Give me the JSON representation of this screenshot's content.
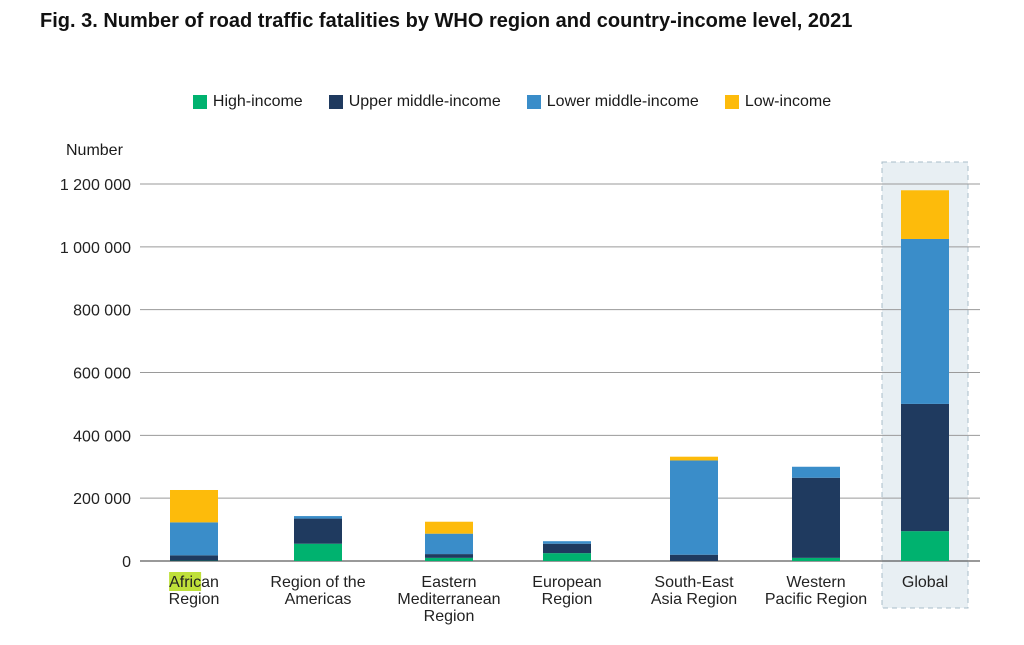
{
  "chart_data": {
    "type": "bar",
    "stacked": true,
    "title": "Fig. 3. Number of road traffic fatalities by WHO region and country-income level, 2021",
    "ylabel": "Number",
    "ylim": [
      0,
      1200000
    ],
    "yticks": [
      0,
      200000,
      400000,
      600000,
      800000,
      1000000,
      1200000
    ],
    "ytick_labels": [
      "0",
      "200 000",
      "400 000",
      "600 000",
      "800 000",
      "1 000 000",
      "1 200 000"
    ],
    "categories": [
      [
        "African",
        "Region"
      ],
      [
        "Region of the",
        "Americas"
      ],
      [
        "Eastern",
        "Mediterranean",
        "Region"
      ],
      [
        "European",
        "Region"
      ],
      [
        "South-East",
        "Asia Region"
      ],
      [
        "Western",
        "Pacific Region"
      ],
      [
        "Global"
      ]
    ],
    "highlighted_text": "Afric",
    "highlighted_category": "Global",
    "series": [
      {
        "name": "High-income",
        "color": "#00b26f",
        "values": [
          1000,
          55000,
          10000,
          25000,
          0,
          10000,
          95000
        ]
      },
      {
        "name": "Upper middle-income",
        "color": "#1f3a5f",
        "values": [
          17000,
          80000,
          12000,
          30000,
          20000,
          255000,
          405000
        ]
      },
      {
        "name": "Lower middle-income",
        "color": "#3a8dc9",
        "values": [
          105000,
          8000,
          65000,
          8000,
          300000,
          35000,
          525000
        ]
      },
      {
        "name": "Low-income",
        "color": "#fdbb0b",
        "values": [
          103000,
          0,
          38000,
          0,
          12000,
          0,
          155000
        ]
      }
    ],
    "legend_position": "top-center",
    "grid": true
  }
}
